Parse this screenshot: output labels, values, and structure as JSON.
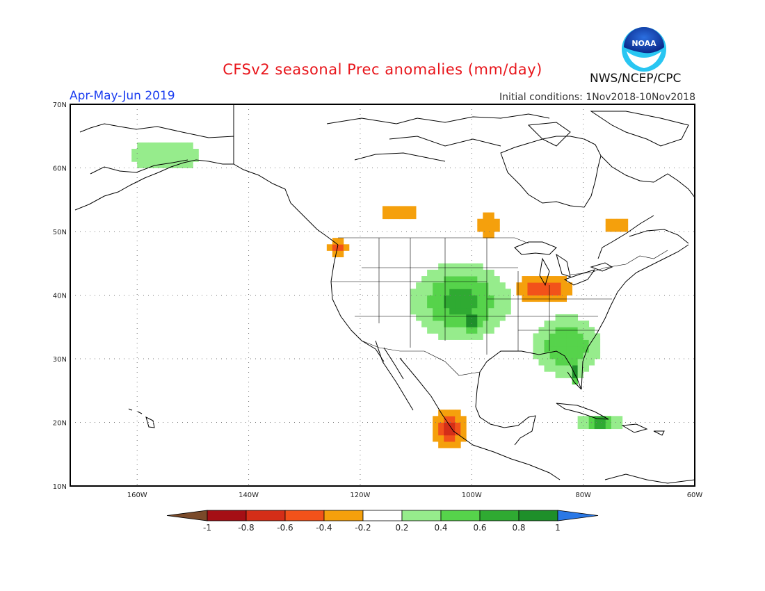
{
  "title": "CFSv2 seasonal Prec anomalies (mm/day)",
  "season": "Apr-May-Jun 2019",
  "initial_conditions": "Initial conditions: 1Nov2018-10Nov2018",
  "agency": "NWS/NCEP/CPC",
  "logo_text": "NOAA",
  "lat_labels": [
    "70N",
    "60N",
    "50N",
    "40N",
    "30N",
    "20N",
    "10N"
  ],
  "lon_labels": [
    "160W",
    "140W",
    "120W",
    "100W",
    "80W",
    "60W"
  ],
  "colorbar": {
    "labels": [
      "-1",
      "-0.8",
      "-0.6",
      "-0.4",
      "-0.2",
      "0.2",
      "0.4",
      "0.6",
      "0.8",
      "1"
    ],
    "colors": [
      "#7a4a2a",
      "#a50f15",
      "#d42e18",
      "#f2521a",
      "#f5a00c",
      "#ffffff",
      "#96ec8c",
      "#56d34b",
      "#2faa32",
      "#1e8f2a",
      "#2a78e6"
    ]
  },
  "map_extent": {
    "lon_min": -172,
    "lon_max": -60,
    "lat_min": 10,
    "lat_max": 70
  },
  "anomaly_regions": [
    {
      "name": "alaska-wet",
      "lat": 62,
      "lon": -155,
      "value": 0.3
    },
    {
      "name": "pacific-northwest-dry",
      "lat": 47.5,
      "lon": -124,
      "value": -0.6
    },
    {
      "name": "central-plains-wet",
      "lat": 39,
      "lon": -102,
      "value": 0.7
    },
    {
      "name": "oklahoma-wet-core",
      "lat": 36,
      "lon": -100,
      "value": 1.0
    },
    {
      "name": "ohio-valley-dry",
      "lat": 41,
      "lon": -87,
      "value": -0.6
    },
    {
      "name": "southeast-wet",
      "lat": 32,
      "lon": -83,
      "value": 0.6
    },
    {
      "name": "florida-wet",
      "lat": 28,
      "lon": -81.5,
      "value": 1.0
    },
    {
      "name": "mexico-southwest-dry",
      "lat": 19,
      "lon": -104,
      "value": -0.7
    },
    {
      "name": "canada-prairies-dry",
      "lat": 53,
      "lon": -113,
      "value": -0.3
    },
    {
      "name": "quebec-dry",
      "lat": 51,
      "lon": -74,
      "value": -0.3
    },
    {
      "name": "caribbean-wet",
      "lat": 20,
      "lon": -77,
      "value": 0.8
    },
    {
      "name": "hudson-bay-south-dry",
      "lat": 51,
      "lon": -97,
      "value": -0.3
    }
  ]
}
